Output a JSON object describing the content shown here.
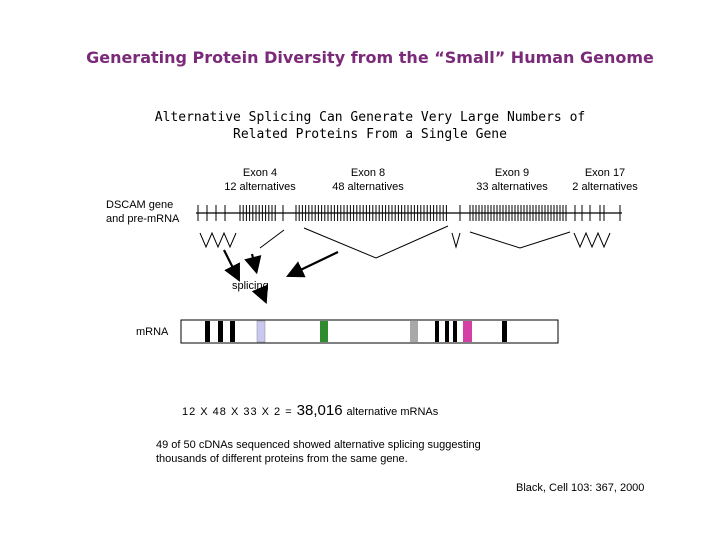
{
  "title": "Generating Protein Diversity from the “Small” Human Genome",
  "subtitle_line1": "Alternative Splicing Can Generate Very Large Numbers of",
  "subtitle_line2": "Related Proteins From a Single Gene",
  "exon4": {
    "name": "Exon 4",
    "alts": "12 alternatives"
  },
  "exon8": {
    "name": "Exon 8",
    "alts": "48 alternatives"
  },
  "exon9": {
    "name": "Exon 9",
    "alts": "33 alternatives"
  },
  "exon17": {
    "name": "Exon 17",
    "alts": "2 alternatives"
  },
  "gene_label_line1": "DSCAM gene",
  "gene_label_line2": "and pre-mRNA",
  "splicing_label": "splicing",
  "mrna_label": "mRNA",
  "calc": {
    "equation": "12 X 48 X 33 X 2 =",
    "result": "38,016",
    "suffix": "alternative mRNAs"
  },
  "note_line1": "49 of 50 cDNAs sequenced showed alternative splicing suggesting",
  "note_line2": "thousands of different proteins from the same gene.",
  "citation": "Black, Cell 103: 367, 2000",
  "colors": {
    "title": "#7a2a78",
    "exon_light_blue": "#c8c8f0",
    "exon_green": "#2e8b2e",
    "exon_gray": "#a8a8a8",
    "exon_magenta": "#d43fa6"
  }
}
